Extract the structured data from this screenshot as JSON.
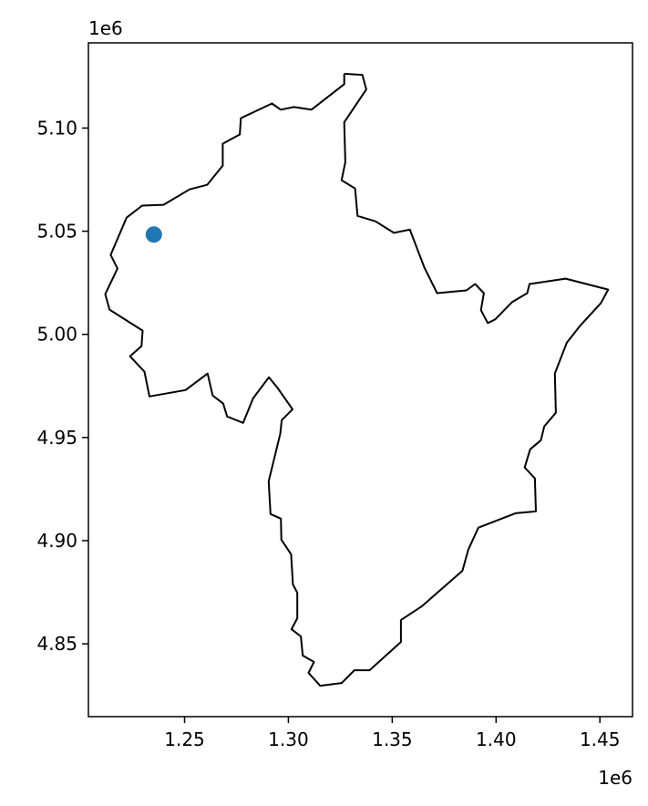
{
  "chart_data": {
    "type": "scatter",
    "title": "",
    "xlabel": "",
    "ylabel": "",
    "x_offset_label": "1e6",
    "y_offset_label": "1e6",
    "xlim": [
      1.2037,
      1.4657
    ],
    "ylim": [
      4.8147,
      5.1413
    ],
    "x_ticks": [
      1.25,
      1.3,
      1.35,
      1.4,
      1.45
    ],
    "x_tick_labels": [
      "1.25",
      "1.30",
      "1.35",
      "1.40",
      "1.45"
    ],
    "y_ticks": [
      4.85,
      4.9,
      4.95,
      5.0,
      5.05,
      5.1
    ],
    "y_tick_labels": [
      "4.85",
      "4.90",
      "4.95",
      "5.00",
      "5.05",
      "5.10"
    ],
    "grid": false,
    "boundary_color": "#000000",
    "point_color": "#1f77b4",
    "boundary": [
      [
        1.3269,
        5.1263
      ],
      [
        1.3356,
        5.1258
      ],
      [
        1.3375,
        5.1187
      ],
      [
        1.3269,
        5.1028
      ],
      [
        1.3274,
        5.0835
      ],
      [
        1.3256,
        5.0747
      ],
      [
        1.3321,
        5.0707
      ],
      [
        1.3333,
        5.0574
      ],
      [
        1.3419,
        5.0548
      ],
      [
        1.3508,
        5.0492
      ],
      [
        1.3585,
        5.0508
      ],
      [
        1.3655,
        5.0323
      ],
      [
        1.3716,
        5.02
      ],
      [
        1.3857,
        5.0213
      ],
      [
        1.3899,
        5.0244
      ],
      [
        1.3941,
        5.02
      ],
      [
        1.3927,
        5.0117
      ],
      [
        1.396,
        5.0055
      ],
      [
        1.3995,
        5.0072
      ],
      [
        1.4077,
        5.0156
      ],
      [
        1.415,
        5.02
      ],
      [
        1.4161,
        5.0244
      ],
      [
        1.4335,
        5.027
      ],
      [
        1.454,
        5.0217
      ],
      [
        1.4505,
        5.0152
      ],
      [
        1.4404,
        5.0041
      ],
      [
        1.434,
        4.9959
      ],
      [
        1.4283,
        4.981
      ],
      [
        1.4288,
        4.962
      ],
      [
        1.4232,
        4.9554
      ],
      [
        1.4216,
        4.9487
      ],
      [
        1.4164,
        4.9443
      ],
      [
        1.4138,
        4.9355
      ],
      [
        1.4187,
        4.9302
      ],
      [
        1.4192,
        4.9142
      ],
      [
        1.4094,
        4.9133
      ],
      [
        1.3915,
        4.9063
      ],
      [
        1.3866,
        4.8956
      ],
      [
        1.3838,
        4.8854
      ],
      [
        1.3641,
        4.8681
      ],
      [
        1.3542,
        4.8615
      ],
      [
        1.3542,
        4.8509
      ],
      [
        1.3391,
        4.8372
      ],
      [
        1.3318,
        4.8372
      ],
      [
        1.3257,
        4.831
      ],
      [
        1.3153,
        4.8297
      ],
      [
        1.3097,
        4.8359
      ],
      [
        1.3123,
        4.8412
      ],
      [
        1.3069,
        4.8443
      ],
      [
        1.306,
        4.8536
      ],
      [
        1.3015,
        4.8571
      ],
      [
        1.3043,
        4.8624
      ],
      [
        1.3043,
        4.8748
      ],
      [
        1.3022,
        4.8788
      ],
      [
        1.3013,
        4.8934
      ],
      [
        1.2966,
        4.9005
      ],
      [
        1.2964,
        4.9107
      ],
      [
        1.2914,
        4.9129
      ],
      [
        1.2905,
        4.9288
      ],
      [
        1.2961,
        4.9518
      ],
      [
        1.2968,
        4.9584
      ],
      [
        1.302,
        4.9637
      ],
      [
        1.2949,
        4.9739
      ],
      [
        1.2906,
        4.9792
      ],
      [
        1.283,
        4.969
      ],
      [
        1.2782,
        4.9571
      ],
      [
        1.2705,
        4.9602
      ],
      [
        1.2686,
        4.9664
      ],
      [
        1.2635,
        4.9704
      ],
      [
        1.2611,
        4.981
      ],
      [
        1.2505,
        4.973
      ],
      [
        1.2331,
        4.9699
      ],
      [
        1.2307,
        4.9819
      ],
      [
        1.2237,
        4.9894
      ],
      [
        1.2293,
        4.9943
      ],
      [
        1.2298,
        5.0018
      ],
      [
        1.2139,
        5.012
      ],
      [
        1.2118,
        5.0195
      ],
      [
        1.2177,
        5.0319
      ],
      [
        1.2144,
        5.0385
      ],
      [
        1.2221,
        5.0566
      ],
      [
        1.2296,
        5.0624
      ],
      [
        1.2399,
        5.0628
      ],
      [
        1.2524,
        5.0703
      ],
      [
        1.2609,
        5.0725
      ],
      [
        1.2684,
        5.0818
      ],
      [
        1.2684,
        5.0924
      ],
      [
        1.2766,
        5.0969
      ],
      [
        1.2771,
        5.1048
      ],
      [
        1.2921,
        5.1119
      ],
      [
        1.2963,
        5.1089
      ],
      [
        1.3027,
        5.1102
      ],
      [
        1.3111,
        5.1089
      ],
      [
        1.3269,
        5.1213
      ],
      [
        1.3269,
        5.1263
      ]
    ],
    "points": [
      {
        "x": 1.2352,
        "y": 5.0484
      }
    ]
  }
}
